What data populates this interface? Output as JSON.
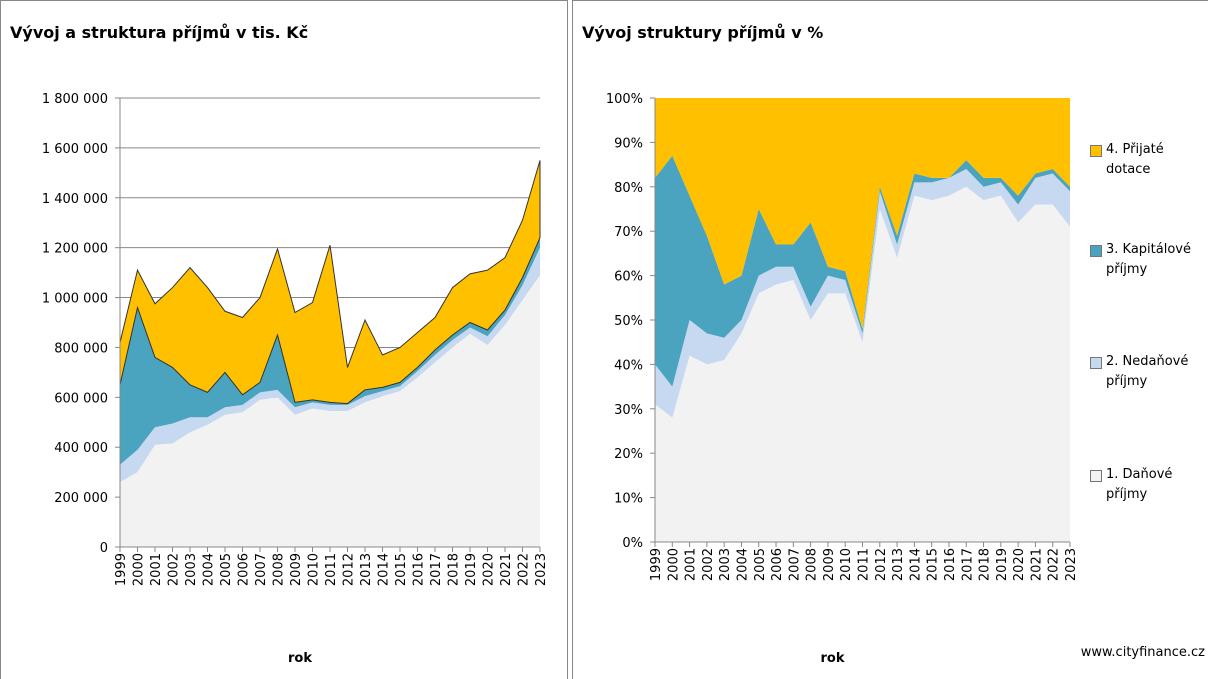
{
  "chart_data": [
    {
      "type": "area",
      "stacked": true,
      "title": "Vývoj a struktura příjmů v tis. Kč",
      "xlabel": "rok",
      "categories": [
        "1999",
        "2000",
        "2001",
        "2002",
        "2003",
        "2004",
        "2005",
        "2006",
        "2007",
        "2008",
        "2009",
        "2010",
        "2011",
        "2012",
        "2013",
        "2014",
        "2015",
        "2016",
        "2017",
        "2018",
        "2019",
        "2020",
        "2021",
        "2022",
        "2023"
      ],
      "series": [
        {
          "name": "1. Daňové příjmy",
          "color": "#f2f2f2",
          "values": [
            260000,
            300000,
            410000,
            415000,
            460000,
            490000,
            530000,
            540000,
            590000,
            600000,
            530000,
            555000,
            545000,
            545000,
            580000,
            605000,
            625000,
            680000,
            740000,
            800000,
            855000,
            810000,
            890000,
            990000,
            1090000
          ]
        },
        {
          "name": "2. Nedaňové příjmy",
          "color": "#c6d9f1",
          "values": [
            70000,
            90000,
            70000,
            80000,
            60000,
            30000,
            30000,
            30000,
            30000,
            30000,
            30000,
            25000,
            25000,
            25000,
            25000,
            20000,
            20000,
            25000,
            30000,
            30000,
            25000,
            35000,
            40000,
            60000,
            110000
          ]
        },
        {
          "name": "3. Kapitálové příjmy",
          "color": "#4aa3bf",
          "values": [
            320000,
            570000,
            280000,
            225000,
            130000,
            100000,
            140000,
            40000,
            40000,
            220000,
            20000,
            10000,
            10000,
            5000,
            25000,
            15000,
            15000,
            15000,
            20000,
            20000,
            20000,
            25000,
            20000,
            30000,
            40000
          ]
        },
        {
          "name": "4. Přijaté dotace",
          "color": "#ffc000",
          "values": [
            170000,
            150000,
            215000,
            320000,
            470000,
            420000,
            245000,
            310000,
            340000,
            345000,
            360000,
            390000,
            630000,
            145000,
            280000,
            130000,
            140000,
            140000,
            130000,
            190000,
            195000,
            240000,
            210000,
            230000,
            310000
          ]
        }
      ],
      "ylim": [
        0,
        1800000
      ],
      "yticks": [
        0,
        {
          "value": 200000,
          "label": "200 000"
        },
        {
          "value": 400000,
          "label": "400 000"
        },
        {
          "value": 600000,
          "label": "600 000"
        },
        {
          "value": 800000,
          "label": "800 000"
        },
        {
          "value": 1000000,
          "label": "1 000 000"
        },
        {
          "value": 1200000,
          "label": "1 200 000"
        },
        {
          "value": 1400000,
          "label": "1 400 000"
        },
        {
          "value": 1600000,
          "label": "1 600 000"
        },
        {
          "value": 1800000,
          "label": "1 800 000"
        }
      ],
      "grid": true
    },
    {
      "type": "area",
      "stacked": true,
      "title": "Vývoj struktury příjmů v %",
      "xlabel": "rok",
      "categories": [
        "1999",
        "2000",
        "2001",
        "2002",
        "2003",
        "2004",
        "2005",
        "2006",
        "2007",
        "2008",
        "2009",
        "2010",
        "2011",
        "2012",
        "2013",
        "2014",
        "2015",
        "2016",
        "2017",
        "2018",
        "2019",
        "2020",
        "2021",
        "2022",
        "2023"
      ],
      "series": [
        {
          "name": "1. Daňové příjmy",
          "color": "#f2f2f2",
          "values": [
            31,
            28,
            42,
            40,
            41,
            47,
            56,
            58,
            59,
            50,
            56,
            56,
            45,
            75,
            64,
            78,
            77,
            78,
            80,
            77,
            78,
            72,
            76,
            76,
            71
          ]
        },
        {
          "name": "2. Nedaňové příjmy",
          "color": "#c6d9f1",
          "values": [
            9,
            7,
            8,
            7,
            5,
            3,
            4,
            4,
            3,
            3,
            4,
            3,
            2,
            4,
            3,
            3,
            4,
            4,
            4,
            3,
            3,
            4,
            6,
            7,
            8
          ]
        },
        {
          "name": "3. Kapitálové příjmy",
          "color": "#4aa3bf",
          "values": [
            42,
            52,
            28,
            22,
            12,
            10,
            15,
            5,
            5,
            19,
            2,
            2,
            1,
            1,
            2,
            2,
            1,
            0,
            2,
            2,
            1,
            2,
            1,
            1,
            1
          ]
        },
        {
          "name": "4. Přijaté dotace",
          "color": "#ffc000",
          "values": [
            18,
            13,
            22,
            31,
            42,
            40,
            25,
            33,
            33,
            28,
            38,
            39,
            52,
            20,
            31,
            17,
            18,
            18,
            14,
            18,
            18,
            22,
            17,
            16,
            20
          ]
        }
      ],
      "ylim": [
        0,
        100
      ],
      "yticks": [
        {
          "value": 0,
          "label": "0%"
        },
        {
          "value": 10,
          "label": "10%"
        },
        {
          "value": 20,
          "label": "20%"
        },
        {
          "value": 30,
          "label": "30%"
        },
        {
          "value": 40,
          "label": "40%"
        },
        {
          "value": 50,
          "label": "50%"
        },
        {
          "value": 60,
          "label": "60%"
        },
        {
          "value": 70,
          "label": "70%"
        },
        {
          "value": 80,
          "label": "80%"
        },
        {
          "value": 90,
          "label": "90%"
        },
        {
          "value": 100,
          "label": "100%"
        }
      ],
      "grid": false,
      "legend": "right"
    }
  ],
  "source": "www.cityfinance.cz"
}
